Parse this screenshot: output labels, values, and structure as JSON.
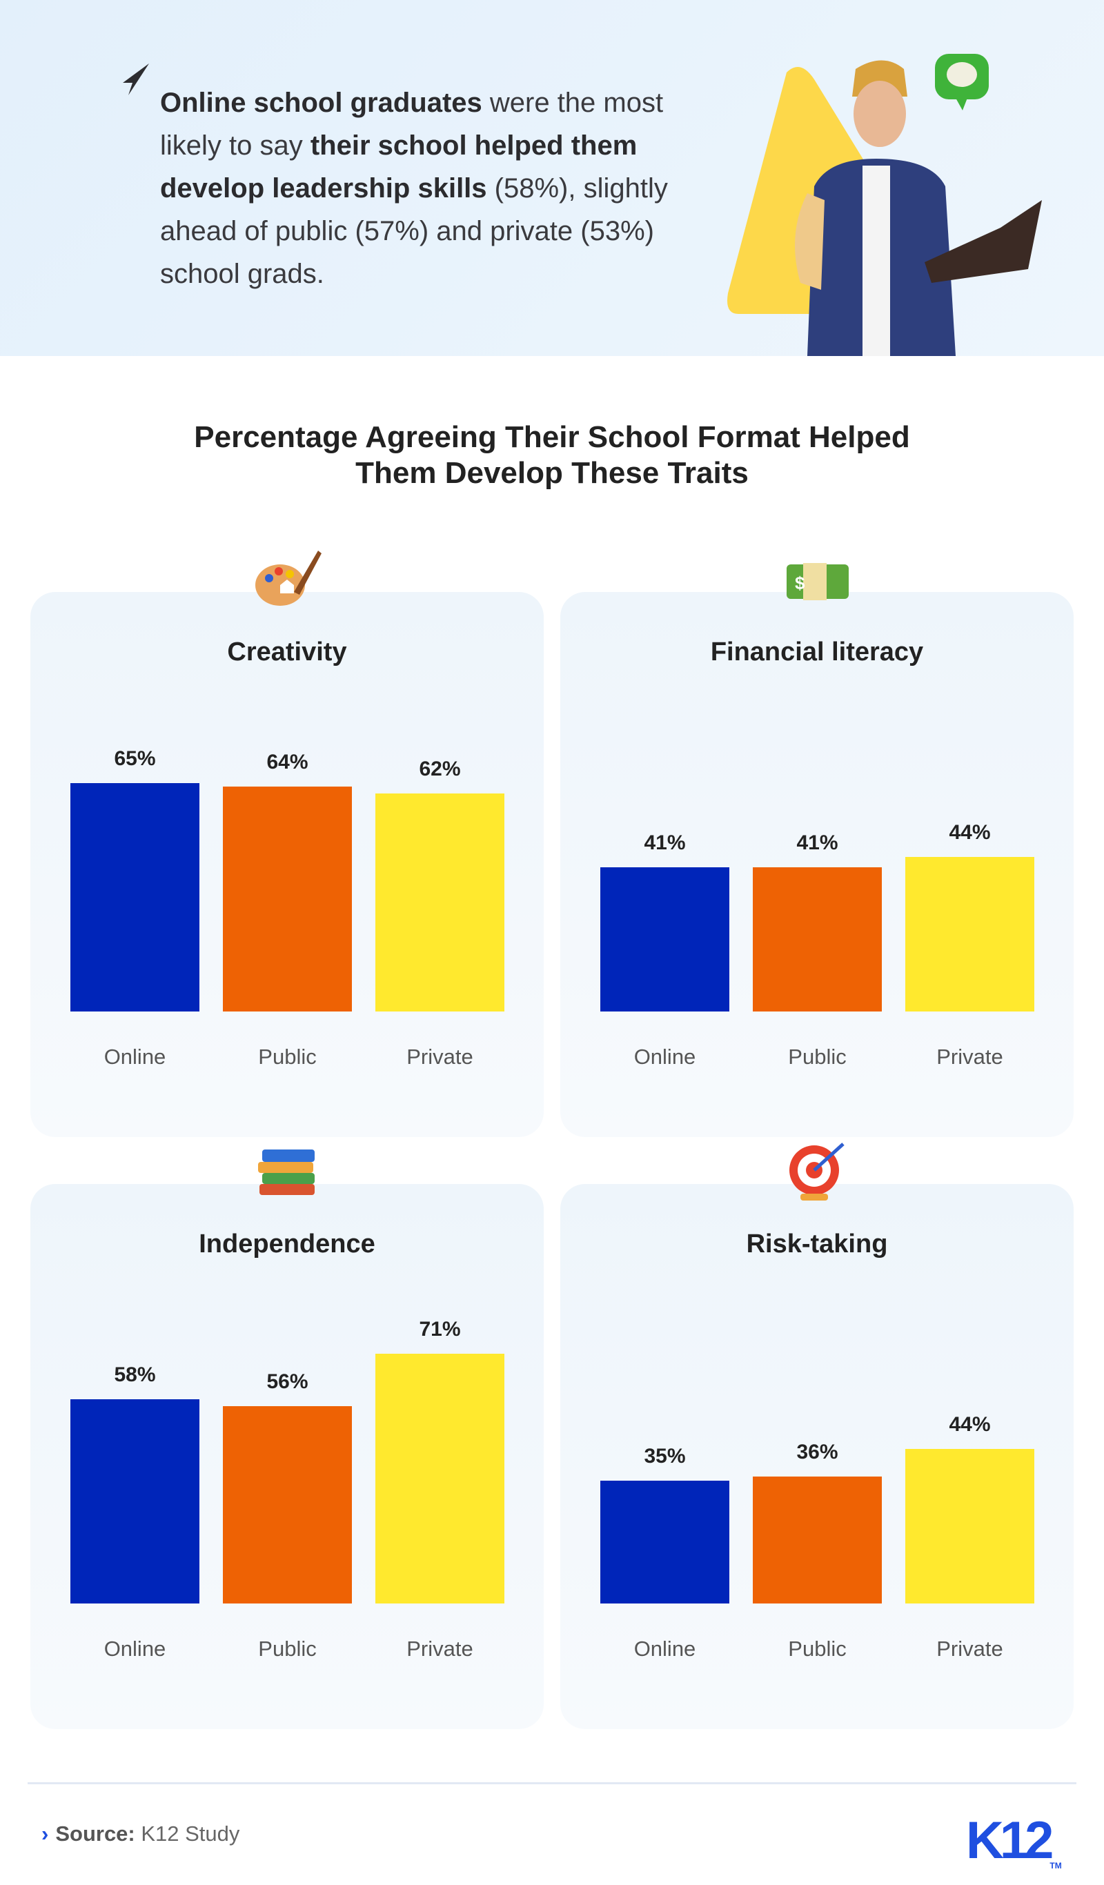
{
  "hero": {
    "parts": [
      {
        "text": "Online school graduates",
        "bold": true
      },
      {
        "text": " were the most likely to say ",
        "bold": false
      },
      {
        "text": "their school helped them develop leadership skills",
        "bold": true
      },
      {
        "text": " (58%), slightly ahead of public (57%) and private (53%) school grads.",
        "bold": false
      }
    ]
  },
  "title_line1": "Percentage Agreeing Their School Format Helped",
  "title_line2": "Them Develop These Traits",
  "colors": {
    "Online": "#0025b9",
    "Public": "#ee6204",
    "Private": "#ffe92e"
  },
  "chart_data": [
    {
      "type": "bar",
      "title": "Creativity",
      "icon": "palette-icon",
      "categories": [
        "Online",
        "Public",
        "Private"
      ],
      "values": [
        65,
        64,
        62
      ],
      "labels": [
        "65%",
        "64%",
        "62%"
      ],
      "ylim": [
        0,
        100
      ]
    },
    {
      "type": "bar",
      "title": "Financial literacy",
      "icon": "money-icon",
      "categories": [
        "Online",
        "Public",
        "Private"
      ],
      "values": [
        41,
        41,
        44
      ],
      "labels": [
        "41%",
        "41%",
        "44%"
      ],
      "ylim": [
        0,
        100
      ]
    },
    {
      "type": "bar",
      "title": "Independence",
      "icon": "books-icon",
      "categories": [
        "Online",
        "Public",
        "Private"
      ],
      "values": [
        58,
        56,
        71
      ],
      "labels": [
        "58%",
        "56%",
        "71%"
      ],
      "ylim": [
        0,
        100
      ]
    },
    {
      "type": "bar",
      "title": "Risk-taking",
      "icon": "target-icon",
      "categories": [
        "Online",
        "Public",
        "Private"
      ],
      "values": [
        35,
        36,
        44
      ],
      "labels": [
        "35%",
        "36%",
        "44%"
      ],
      "ylim": [
        0,
        100
      ]
    }
  ],
  "footer": {
    "source_label": "Source:",
    "source_value": " K12 Study",
    "logo": "K12",
    "tm": "TM"
  }
}
